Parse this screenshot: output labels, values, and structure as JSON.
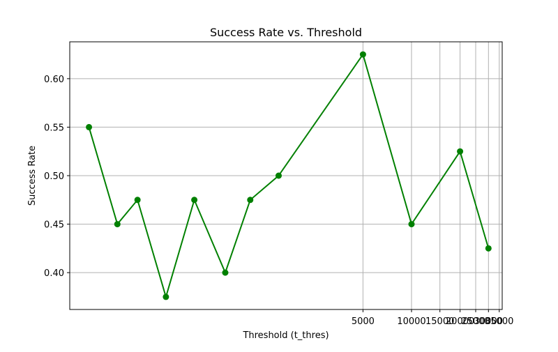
{
  "chart_data": {
    "type": "line",
    "title": "Success Rate vs. Threshold",
    "xlabel": "Threshold (t_thres)",
    "ylabel": "Success Rate",
    "x_scale": "log",
    "xlim": [
      76,
      36500
    ],
    "ylim": [
      0.362,
      0.638
    ],
    "grid": true,
    "x_ticks": [
      5000,
      10000,
      15000,
      20000,
      25000,
      30000,
      35000
    ],
    "x_tick_labels": [
      "5000",
      "10000",
      "15000",
      "20000",
      "25000",
      "30000",
      "35000"
    ],
    "y_ticks": [
      0.4,
      0.45,
      0.5,
      0.55,
      0.6
    ],
    "y_tick_labels": [
      "0.40",
      "0.45",
      "0.50",
      "0.55",
      "0.60"
    ],
    "series": [
      {
        "name": "",
        "color": "#008000",
        "marker": "circle",
        "x": [
          100,
          150,
          200,
          300,
          450,
          700,
          1000,
          1500,
          5000,
          10000,
          20000,
          30000
        ],
        "y": [
          0.55,
          0.45,
          0.475,
          0.375,
          0.475,
          0.4,
          0.475,
          0.5,
          0.625,
          0.45,
          0.525,
          0.425
        ]
      }
    ]
  }
}
